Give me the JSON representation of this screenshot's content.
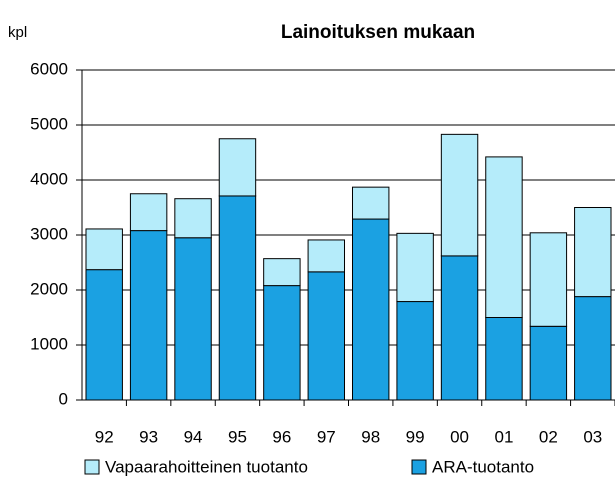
{
  "chart_data": {
    "type": "stacked_bar",
    "title": "Lainoituksen mukaan",
    "y_label": "kpl",
    "categories": [
      "92",
      "93",
      "94",
      "95",
      "96",
      "97",
      "98",
      "99",
      "00",
      "01",
      "02",
      "03"
    ],
    "series": [
      {
        "name": "ARA-tuotanto",
        "color": "#1ba1e2",
        "values": [
          2370,
          3080,
          2950,
          3710,
          2080,
          2330,
          3290,
          1790,
          2620,
          1500,
          1340,
          1880
        ]
      },
      {
        "name": "Vapaarahoitteinen tuotanto",
        "color": "#b5ecfa",
        "values": [
          740,
          670,
          710,
          1040,
          490,
          580,
          580,
          1240,
          2210,
          2920,
          1700,
          1620
        ]
      }
    ],
    "ylim": [
      0,
      6000
    ],
    "yticks": [
      0,
      1000,
      2000,
      3000,
      4000,
      5000,
      6000
    ],
    "grid": true
  }
}
